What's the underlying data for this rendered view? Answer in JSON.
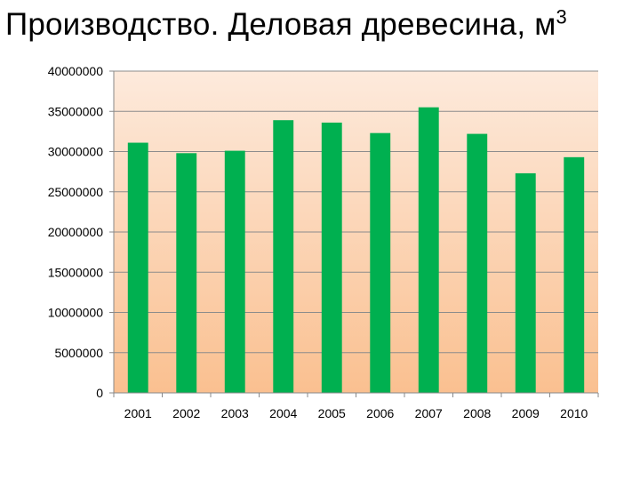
{
  "title": {
    "text": "Производство. Деловая древесина, м",
    "superscript": "3"
  },
  "chart_data": {
    "type": "bar",
    "categories": [
      "2001",
      "2002",
      "2003",
      "2004",
      "2005",
      "2006",
      "2007",
      "2008",
      "2009",
      "2010"
    ],
    "values": [
      31100000,
      29800000,
      30100000,
      33900000,
      33600000,
      32300000,
      35500000,
      32200000,
      27300000,
      29300000
    ],
    "ylim": [
      0,
      40000000
    ],
    "yticks": [
      0,
      5000000,
      10000000,
      15000000,
      20000000,
      25000000,
      30000000,
      35000000,
      40000000
    ],
    "grid": true,
    "legend": "none",
    "bar_color": "#00b050",
    "plot_gradient": [
      "#fdeadc",
      "#fac090"
    ]
  }
}
